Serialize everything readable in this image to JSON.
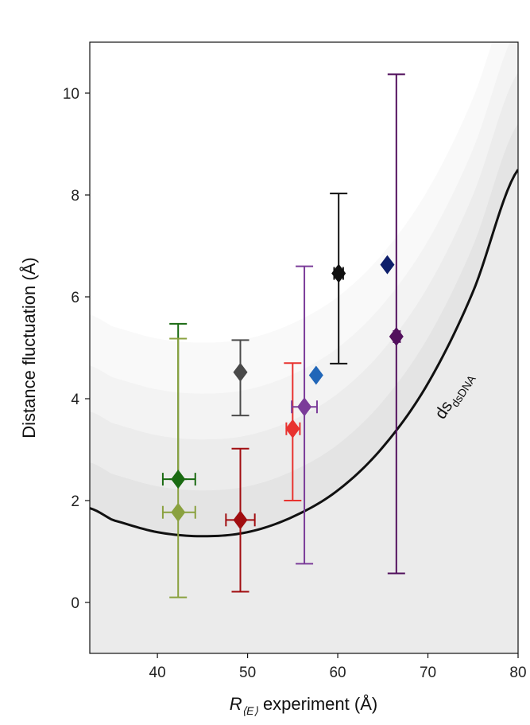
{
  "chart_data": {
    "type": "scatter",
    "xlabel": "experiment (Å)",
    "xlabel_symbol": "R",
    "xlabel_subscript": "⟨E⟩",
    "ylabel": "Distance fluctuation (Å)",
    "xlim": [
      32.5,
      80
    ],
    "ylim": [
      -1,
      11
    ],
    "x_ticks": [
      40,
      50,
      60,
      70,
      80
    ],
    "y_ticks": [
      0,
      2,
      4,
      6,
      8,
      10
    ],
    "grid": false,
    "curve_label": "ds",
    "curve_label_subscript": "dsDNA",
    "curve": {
      "x": [
        32.5,
        35,
        40,
        45,
        50,
        55,
        60,
        65,
        70,
        75,
        80
      ],
      "y": [
        1.85,
        1.62,
        1.38,
        1.3,
        1.38,
        1.68,
        2.2,
        3.05,
        4.3,
        6.1,
        8.5
      ]
    },
    "bands": [
      {
        "name": "band-1",
        "offset": 0.9,
        "color": "#e4e4e4"
      },
      {
        "name": "band-2",
        "offset": 1.9,
        "color": "#ececec"
      },
      {
        "name": "band-3",
        "offset": 2.8,
        "color": "#f3f3f3"
      },
      {
        "name": "band-4",
        "offset": 3.8,
        "color": "#f9f9f9"
      }
    ],
    "below_curve_color": "#ebebeb",
    "points": [
      {
        "name": "dark-green",
        "x": 42.3,
        "y": 2.42,
        "y_lo": 2.42,
        "y_hi": 5.47,
        "x_lo": 40.6,
        "x_hi": 44.2,
        "color": "#1a6a12"
      },
      {
        "name": "olive",
        "x": 42.3,
        "y": 1.77,
        "y_lo": 0.1,
        "y_hi": 5.18,
        "x_lo": 40.6,
        "x_hi": 44.2,
        "color": "#8aa13f"
      },
      {
        "name": "dark-gray",
        "x": 49.2,
        "y": 4.52,
        "y_lo": 3.67,
        "y_hi": 5.15,
        "x_lo": null,
        "x_hi": null,
        "color": "#4a4a4a"
      },
      {
        "name": "dark-red",
        "x": 49.2,
        "y": 1.62,
        "y_lo": 0.21,
        "y_hi": 3.02,
        "x_lo": 47.6,
        "x_hi": 50.8,
        "color": "#a10d10"
      },
      {
        "name": "red",
        "x": 55.0,
        "y": 3.41,
        "y_lo": 2.0,
        "y_hi": 4.7,
        "x_lo": 54.3,
        "x_hi": 55.8,
        "color": "#e8322f"
      },
      {
        "name": "purple",
        "x": 56.3,
        "y": 3.84,
        "y_lo": 0.76,
        "y_hi": 6.6,
        "x_lo": 54.9,
        "x_hi": 57.7,
        "color": "#7b3c99"
      },
      {
        "name": "blue",
        "x": 57.6,
        "y": 4.46,
        "y_lo": null,
        "y_hi": null,
        "x_lo": null,
        "x_hi": null,
        "color": "#2166b8"
      },
      {
        "name": "black",
        "x": 60.1,
        "y": 6.46,
        "y_lo": 4.69,
        "y_hi": 8.03,
        "x_lo": 59.6,
        "x_hi": 60.6,
        "color": "#111111"
      },
      {
        "name": "navy",
        "x": 65.5,
        "y": 6.63,
        "y_lo": null,
        "y_hi": null,
        "x_lo": null,
        "x_hi": null,
        "color": "#0e1f6b"
      },
      {
        "name": "dark-purple",
        "x": 66.5,
        "y": 5.22,
        "y_lo": 0.57,
        "y_hi": 10.37,
        "x_lo": 66.2,
        "x_hi": 66.9,
        "color": "#52105d"
      }
    ]
  }
}
